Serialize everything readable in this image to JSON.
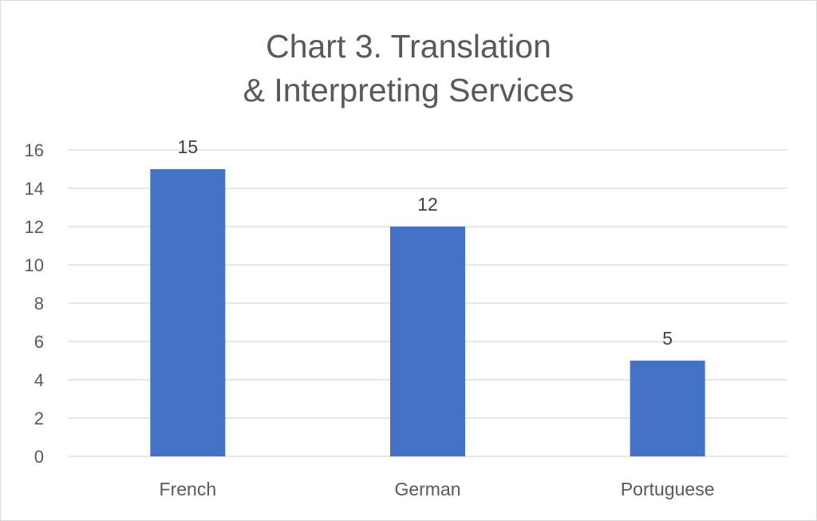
{
  "chart_data": {
    "type": "bar",
    "title_lines": [
      "Chart 3. Translation",
      "& Interpreting Services"
    ],
    "categories": [
      "French",
      "German",
      "Portuguese"
    ],
    "values": [
      15,
      12,
      5
    ],
    "ylim": [
      0,
      16
    ],
    "yticks": [
      0,
      2,
      4,
      6,
      8,
      10,
      12,
      14,
      16
    ],
    "grid": true,
    "bar_color": "#4472c4",
    "grid_color": "#d9d9d9",
    "legend": "none"
  }
}
